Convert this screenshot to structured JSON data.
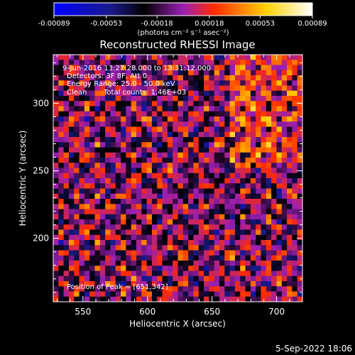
{
  "chart_data": {
    "type": "heatmap",
    "title": "Reconstructed RHESSI Image",
    "xlabel": "Heliocentric X (arcsec)",
    "ylabel": "Heliocentric Y (arcsec)",
    "xlim": [
      527,
      720
    ],
    "ylim": [
      153,
      336
    ],
    "x_ticks": [
      550,
      600,
      650,
      700
    ],
    "y_ticks": [
      200,
      250,
      300
    ],
    "colorbar": {
      "min": -0.00089,
      "max": 0.00089,
      "tick_labels": [
        "-0.00089",
        "-0.00053",
        "-0.00018",
        "0.00018",
        "0.00053",
        "0.00089"
      ],
      "unit_label": "(photons cm⁻² s⁻¹ asec⁻²)",
      "colormap": [
        "#0000ff",
        "#000000",
        "#9a1fb5",
        "#ff2a00",
        "#ffd000",
        "#ffffff"
      ]
    },
    "annotations": {
      "time_range": "9-Jun-2016 13:27:28.000 to 13:31:12.000",
      "detectors": "Detectors: 3F 8F, Att 0",
      "energy": "Energy Range: 25.0 - 50.0 keV",
      "method": "Clean",
      "counts": "Total counts: 1.46E+03",
      "peak": "Position of Peak = [651,342]"
    },
    "grid": false,
    "image_grid_size": [
      48,
      48
    ]
  },
  "footer": {
    "date": "5-Sep-2022 18:06"
  }
}
